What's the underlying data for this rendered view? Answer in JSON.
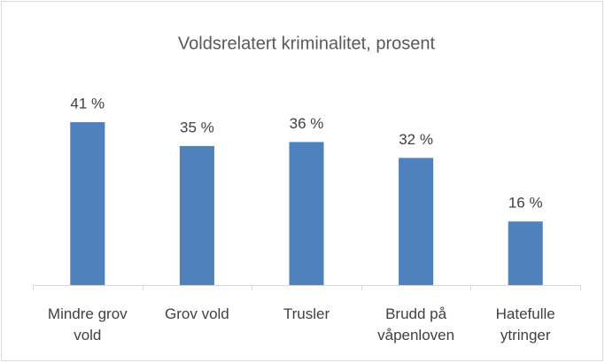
{
  "chart_data": {
    "type": "bar",
    "title": "Voldsrelatert kriminalitet, prosent",
    "categories": [
      "Mindre grov vold",
      "Grov vold",
      "Trusler",
      "Brudd på våpenloven",
      "Hatefulle ytringer"
    ],
    "values": [
      41,
      35,
      36,
      32,
      16
    ],
    "value_labels": [
      "41 %",
      "35 %",
      "36 %",
      "32 %",
      "16 %"
    ],
    "color": "#4f81bd",
    "ylim": [
      0,
      45
    ]
  }
}
